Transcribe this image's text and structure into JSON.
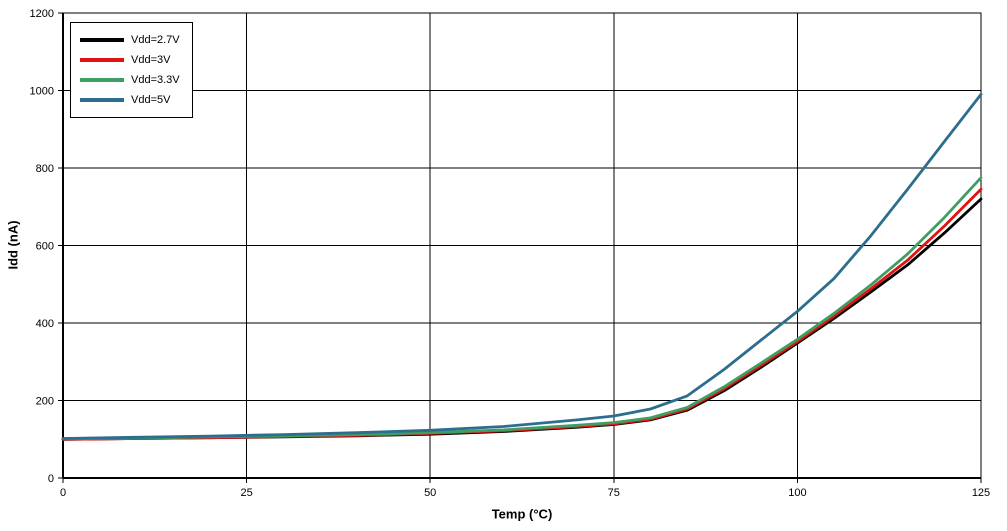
{
  "chart_data": {
    "type": "line",
    "title": "",
    "xlabel": "Temp (°C)",
    "ylabel": "Idd (nA)",
    "xlim": [
      0,
      125
    ],
    "ylim": [
      0,
      1200
    ],
    "x_ticks": [
      "0",
      "25",
      "50",
      "75",
      "100",
      "125"
    ],
    "x_tick_values": [
      0,
      25,
      50,
      75,
      100,
      125
    ],
    "y_ticks": [
      "0",
      "200",
      "400",
      "600",
      "800",
      "1000",
      "1200"
    ],
    "y_tick_values": [
      0,
      200,
      400,
      600,
      800,
      1000,
      1200
    ],
    "grid": true,
    "legend_position": "top-left",
    "x": [
      0,
      10,
      20,
      30,
      40,
      50,
      60,
      70,
      75,
      80,
      85,
      90,
      95,
      100,
      105,
      110,
      115,
      120,
      125
    ],
    "series": [
      {
        "name": "Vdd=2.7V",
        "color": "#000000",
        "values": [
          100,
          102,
          104,
          106,
          109,
          113,
          120,
          131,
          138,
          150,
          175,
          225,
          285,
          348,
          412,
          480,
          550,
          632,
          720
        ]
      },
      {
        "name": "Vdd=3V",
        "color": "#e31212",
        "values": [
          100,
          102,
          104,
          107,
          110,
          115,
          122,
          133,
          140,
          152,
          178,
          230,
          290,
          352,
          418,
          488,
          562,
          650,
          745
        ]
      },
      {
        "name": "Vdd=3.3V",
        "color": "#3f9e63",
        "values": [
          101,
          103,
          106,
          109,
          112,
          117,
          124,
          136,
          143,
          155,
          182,
          235,
          296,
          358,
          425,
          498,
          578,
          672,
          775
        ]
      },
      {
        "name": "Vdd=5V",
        "color": "#2d6e8e",
        "values": [
          102,
          105,
          108,
          112,
          117,
          123,
          133,
          150,
          160,
          178,
          212,
          280,
          355,
          430,
          515,
          625,
          745,
          868,
          990
        ]
      }
    ]
  }
}
